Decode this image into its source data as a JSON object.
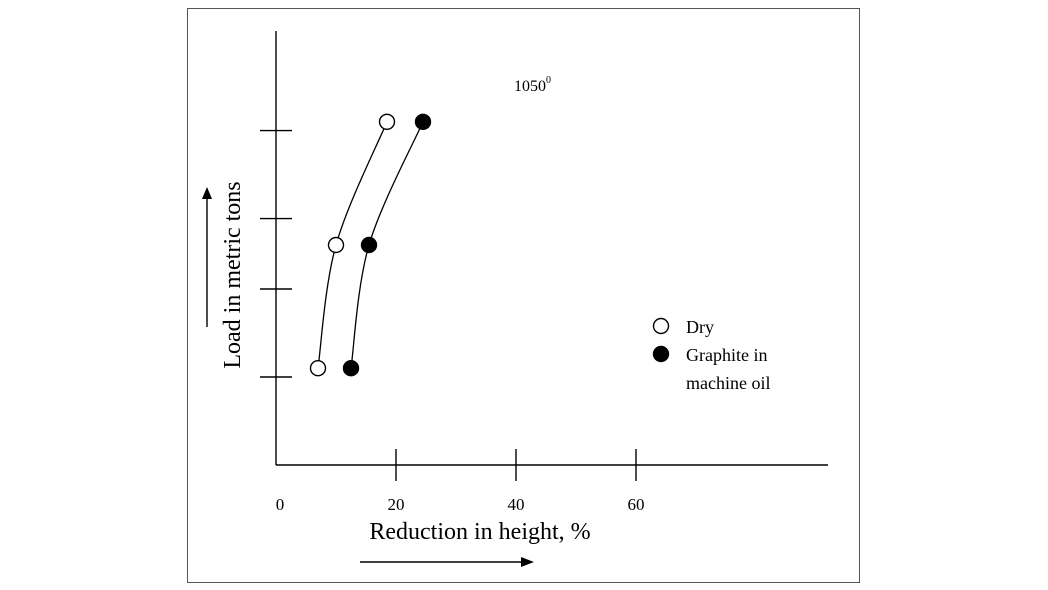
{
  "chart_data": {
    "type": "scatter",
    "title": "",
    "annotation": {
      "base": "1050",
      "sup": "0"
    },
    "xlabel": "Reduction in height, %",
    "ylabel": "Load in metric tons",
    "xlim": [
      0,
      90
    ],
    "ylim": [
      0,
      6
    ],
    "x_ticks": [
      0,
      20,
      40,
      60
    ],
    "x_tick_labels": [
      "0",
      "20",
      "40",
      "60"
    ],
    "y_ticks": [
      1,
      2,
      2.8,
      3.8
    ],
    "y_tick_labels": [],
    "legend": {
      "position": "right",
      "entries": [
        {
          "label": "Dry",
          "marker": "open-circle"
        },
        {
          "label_lines": [
            "Graphite in",
            "machine oil"
          ],
          "marker": "filled-circle"
        }
      ]
    },
    "series": [
      {
        "name": "Dry",
        "marker": "open",
        "x": [
          7,
          10,
          18.5
        ],
        "y": [
          1.1,
          2.5,
          3.9
        ]
      },
      {
        "name": "Graphite in machine oil",
        "marker": "filled",
        "x": [
          12.5,
          15.5,
          24.5
        ],
        "y": [
          1.1,
          2.5,
          3.9
        ]
      }
    ],
    "colors": {
      "axis": "#000000",
      "marker_fill_open": "#ffffff",
      "marker_fill_filled": "#000000"
    }
  }
}
